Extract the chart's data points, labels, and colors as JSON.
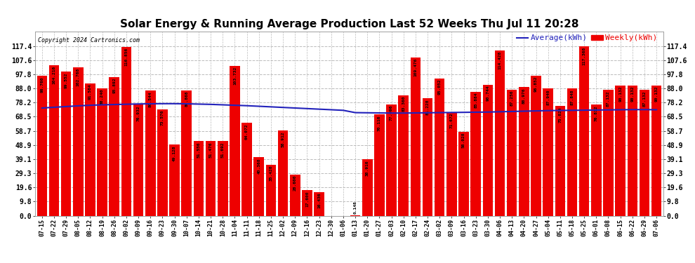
{
  "title": "Solar Energy & Running Average Production Last 52 Weeks Thu Jul 11 20:28",
  "copyright": "Copyright 2024 Cartronics.com",
  "legend_avg": "Average(kWh)",
  "legend_weekly": "Weekly(kWh)",
  "bar_color": "#ee0000",
  "line_color": "#2222bb",
  "background_color": "#ffffff",
  "grid_color": "#bbbbbb",
  "ylim_max": 127.4,
  "yticks": [
    0.0,
    9.8,
    19.6,
    29.3,
    39.1,
    48.9,
    58.7,
    68.5,
    78.2,
    88.0,
    97.8,
    107.6,
    117.4
  ],
  "categories": [
    "07-15",
    "07-22",
    "07-29",
    "08-05",
    "08-12",
    "08-19",
    "08-26",
    "09-02",
    "09-09",
    "09-16",
    "09-23",
    "09-30",
    "10-07",
    "10-14",
    "10-21",
    "10-28",
    "11-04",
    "11-11",
    "11-18",
    "11-25",
    "12-02",
    "12-09",
    "12-16",
    "12-23",
    "12-30",
    "01-06",
    "01-13",
    "01-20",
    "01-27",
    "02-03",
    "02-10",
    "02-17",
    "02-24",
    "03-02",
    "03-09",
    "03-16",
    "03-23",
    "03-30",
    "04-06",
    "04-13",
    "04-20",
    "04-27",
    "05-04",
    "05-11",
    "05-18",
    "05-25",
    "06-01",
    "06-08",
    "06-15",
    "06-22",
    "06-29",
    "07-06"
  ],
  "weekly_values": [
    96.76,
    104.216,
    99.552,
    102.768,
    91.584,
    88.24,
    95.892,
    116.856,
    76.932,
    86.544,
    73.576,
    49.128,
    86.868,
    51.556,
    51.476,
    51.692,
    103.732,
    64.072,
    40.368,
    35.42,
    58.912,
    28.6,
    17.6,
    16.436,
    0.0,
    0.0,
    0.148,
    38.916,
    70.116,
    77.096,
    83.36,
    109.476,
    81.228,
    95.052,
    71.672,
    58.028,
    85.884,
    90.744,
    114.428,
    87.256,
    88.976,
    96.852,
    87.94,
    75.824,
    87.848,
    117.368,
    76.812,
    87.132,
    90.132,
    90.132,
    87.132,
    90.132
  ],
  "avg_values": [
    74.5,
    75.0,
    75.5,
    76.0,
    76.4,
    76.7,
    76.9,
    77.1,
    77.3,
    77.4,
    77.5,
    77.5,
    77.4,
    77.2,
    77.0,
    76.7,
    76.4,
    76.1,
    75.7,
    75.3,
    74.9,
    74.5,
    74.1,
    73.7,
    73.3,
    72.9,
    71.3,
    71.2,
    71.1,
    71.0,
    71.0,
    71.1,
    71.2,
    71.3,
    71.4,
    71.5,
    71.6,
    71.7,
    71.9,
    72.1,
    72.3,
    72.5,
    72.7,
    72.8,
    72.9,
    73.0,
    73.1,
    73.2,
    73.3,
    73.4,
    73.4,
    73.3
  ],
  "title_fontsize": 11,
  "axis_fontsize": 6,
  "ytick_fontsize": 7,
  "label_fontsize": 4.5
}
